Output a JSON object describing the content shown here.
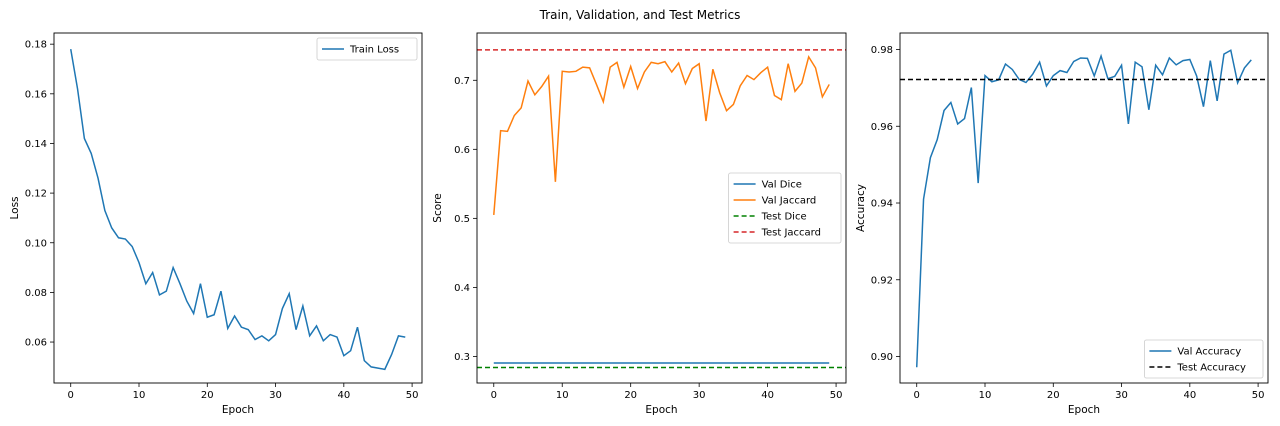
{
  "figure": {
    "title": "Train, Validation, and Test Metrics"
  },
  "chart_data": [
    {
      "type": "line",
      "xlabel": "Epoch",
      "ylabel": "Loss",
      "xlim": [
        -2.45,
        51.45
      ],
      "ylim": [
        0.0435,
        0.1845
      ],
      "xticks": [
        0,
        10,
        20,
        30,
        40,
        50
      ],
      "yticks": [
        0.06,
        0.08,
        0.1,
        0.12,
        0.14,
        0.16,
        0.18
      ],
      "ytick_decimals": 2,
      "grid": false,
      "legend": "top-right",
      "series": [
        {
          "name": "Train Loss",
          "color": "#1f77b4",
          "dash": "",
          "x": [
            0,
            1,
            2,
            3,
            4,
            5,
            6,
            7,
            8,
            9,
            10,
            11,
            12,
            13,
            14,
            15,
            16,
            17,
            18,
            19,
            20,
            21,
            22,
            23,
            24,
            25,
            26,
            27,
            28,
            29,
            30,
            31,
            32,
            33,
            34,
            35,
            36,
            37,
            38,
            39,
            40,
            41,
            42,
            43,
            44,
            45,
            46,
            47,
            48,
            49
          ],
          "y": [
            0.178,
            0.162,
            0.142,
            0.136,
            0.126,
            0.113,
            0.106,
            0.102,
            0.1015,
            0.0985,
            0.092,
            0.0835,
            0.088,
            0.079,
            0.0805,
            0.09,
            0.0835,
            0.0765,
            0.0715,
            0.0835,
            0.07,
            0.071,
            0.0805,
            0.0655,
            0.0705,
            0.066,
            0.065,
            0.061,
            0.0625,
            0.0605,
            0.063,
            0.0735,
            0.0795,
            0.065,
            0.0745,
            0.0625,
            0.0665,
            0.0605,
            0.063,
            0.062,
            0.0545,
            0.0565,
            0.066,
            0.0525,
            0.05,
            0.0495,
            0.049,
            0.055,
            0.0625,
            0.062
          ]
        }
      ]
    },
    {
      "type": "line",
      "xlabel": "Epoch",
      "ylabel": "Score",
      "xlim": [
        -2.45,
        51.45
      ],
      "ylim": [
        0.2615,
        0.7685
      ],
      "xticks": [
        0,
        10,
        20,
        30,
        40,
        50
      ],
      "yticks": [
        0.3,
        0.4,
        0.5,
        0.6,
        0.7
      ],
      "ytick_decimals": 1,
      "grid": false,
      "legend": "center-right",
      "series": [
        {
          "name": "Val Dice",
          "color": "#1f77b4",
          "dash": "",
          "x": [
            0,
            1,
            2,
            3,
            4,
            5,
            6,
            7,
            8,
            9,
            10,
            11,
            12,
            13,
            14,
            15,
            16,
            17,
            18,
            19,
            20,
            21,
            22,
            23,
            24,
            25,
            26,
            27,
            28,
            29,
            30,
            31,
            32,
            33,
            34,
            35,
            36,
            37,
            38,
            39,
            40,
            41,
            42,
            43,
            44,
            45,
            46,
            47,
            48,
            49
          ],
          "y": [
            0.2905,
            0.2905,
            0.2905,
            0.2905,
            0.2905,
            0.2905,
            0.2905,
            0.2905,
            0.2905,
            0.2905,
            0.2905,
            0.2905,
            0.2905,
            0.2905,
            0.2905,
            0.2905,
            0.2905,
            0.2905,
            0.2905,
            0.2905,
            0.2905,
            0.2905,
            0.2905,
            0.2905,
            0.2905,
            0.2905,
            0.2905,
            0.2905,
            0.2905,
            0.2905,
            0.2905,
            0.2905,
            0.2905,
            0.2905,
            0.2905,
            0.2905,
            0.2905,
            0.2905,
            0.2905,
            0.2905,
            0.2905,
            0.2905,
            0.2905,
            0.2905,
            0.2905,
            0.2905,
            0.2905,
            0.2905,
            0.2905,
            0.2905
          ]
        },
        {
          "name": "Val Jaccard",
          "color": "#ff7f0e",
          "dash": "",
          "x": [
            0,
            1,
            2,
            3,
            4,
            5,
            6,
            7,
            8,
            9,
            10,
            11,
            12,
            13,
            14,
            15,
            16,
            17,
            18,
            19,
            20,
            21,
            22,
            23,
            24,
            25,
            26,
            27,
            28,
            29,
            30,
            31,
            32,
            33,
            34,
            35,
            36,
            37,
            38,
            39,
            40,
            41,
            42,
            43,
            44,
            45,
            46,
            47,
            48,
            49
          ],
          "y": [
            0.505,
            0.627,
            0.626,
            0.649,
            0.66,
            0.699,
            0.679,
            0.691,
            0.706,
            0.553,
            0.713,
            0.712,
            0.713,
            0.719,
            0.718,
            0.694,
            0.669,
            0.719,
            0.726,
            0.69,
            0.72,
            0.688,
            0.712,
            0.726,
            0.724,
            0.727,
            0.712,
            0.725,
            0.695,
            0.717,
            0.724,
            0.641,
            0.716,
            0.682,
            0.656,
            0.665,
            0.692,
            0.707,
            0.701,
            0.711,
            0.719,
            0.678,
            0.672,
            0.724,
            0.684,
            0.696,
            0.734,
            0.718,
            0.676,
            0.694
          ]
        },
        {
          "name": "Test Dice",
          "color": "#008000",
          "dash": "5,3",
          "x": [
            -2.45,
            51.45
          ],
          "y": [
            0.284,
            0.284
          ]
        },
        {
          "name": "Test Jaccard",
          "color": "#d62728",
          "dash": "5,3",
          "x": [
            -2.45,
            51.45
          ],
          "y": [
            0.744,
            0.744
          ]
        }
      ]
    },
    {
      "type": "line",
      "xlabel": "Epoch",
      "ylabel": "Accuracy",
      "xlim": [
        -2.45,
        51.45
      ],
      "ylim": [
        0.8931,
        0.9843
      ],
      "xticks": [
        0,
        10,
        20,
        30,
        40,
        50
      ],
      "yticks": [
        0.9,
        0.92,
        0.94,
        0.96,
        0.98
      ],
      "ytick_decimals": 2,
      "grid": false,
      "legend": "bottom-right",
      "series": [
        {
          "name": "Val Accuracy",
          "color": "#1f77b4",
          "dash": "",
          "x": [
            0,
            1,
            2,
            3,
            4,
            5,
            6,
            7,
            8,
            9,
            10,
            11,
            12,
            13,
            14,
            15,
            16,
            17,
            18,
            19,
            20,
            21,
            22,
            23,
            24,
            25,
            26,
            27,
            28,
            29,
            30,
            31,
            32,
            33,
            34,
            35,
            36,
            37,
            38,
            39,
            40,
            41,
            42,
            43,
            44,
            45,
            46,
            47,
            48,
            49
          ],
          "y": [
            0.8972,
            0.941,
            0.9518,
            0.9565,
            0.9641,
            0.9662,
            0.9606,
            0.962,
            0.9701,
            0.9452,
            0.9732,
            0.9716,
            0.9721,
            0.9762,
            0.9748,
            0.9722,
            0.9714,
            0.9736,
            0.9767,
            0.9705,
            0.9732,
            0.9745,
            0.974,
            0.9769,
            0.9778,
            0.9777,
            0.9731,
            0.9783,
            0.9724,
            0.973,
            0.9759,
            0.9606,
            0.9767,
            0.9755,
            0.9643,
            0.9759,
            0.9734,
            0.9778,
            0.976,
            0.9771,
            0.9774,
            0.9731,
            0.9651,
            0.9771,
            0.9666,
            0.9788,
            0.9798,
            0.9713,
            0.9752,
            0.9773
          ]
        },
        {
          "name": "Test Accuracy",
          "color": "#000000",
          "dash": "5,3",
          "x": [
            -2.45,
            51.45
          ],
          "y": [
            0.9722,
            0.9722
          ]
        }
      ]
    }
  ]
}
